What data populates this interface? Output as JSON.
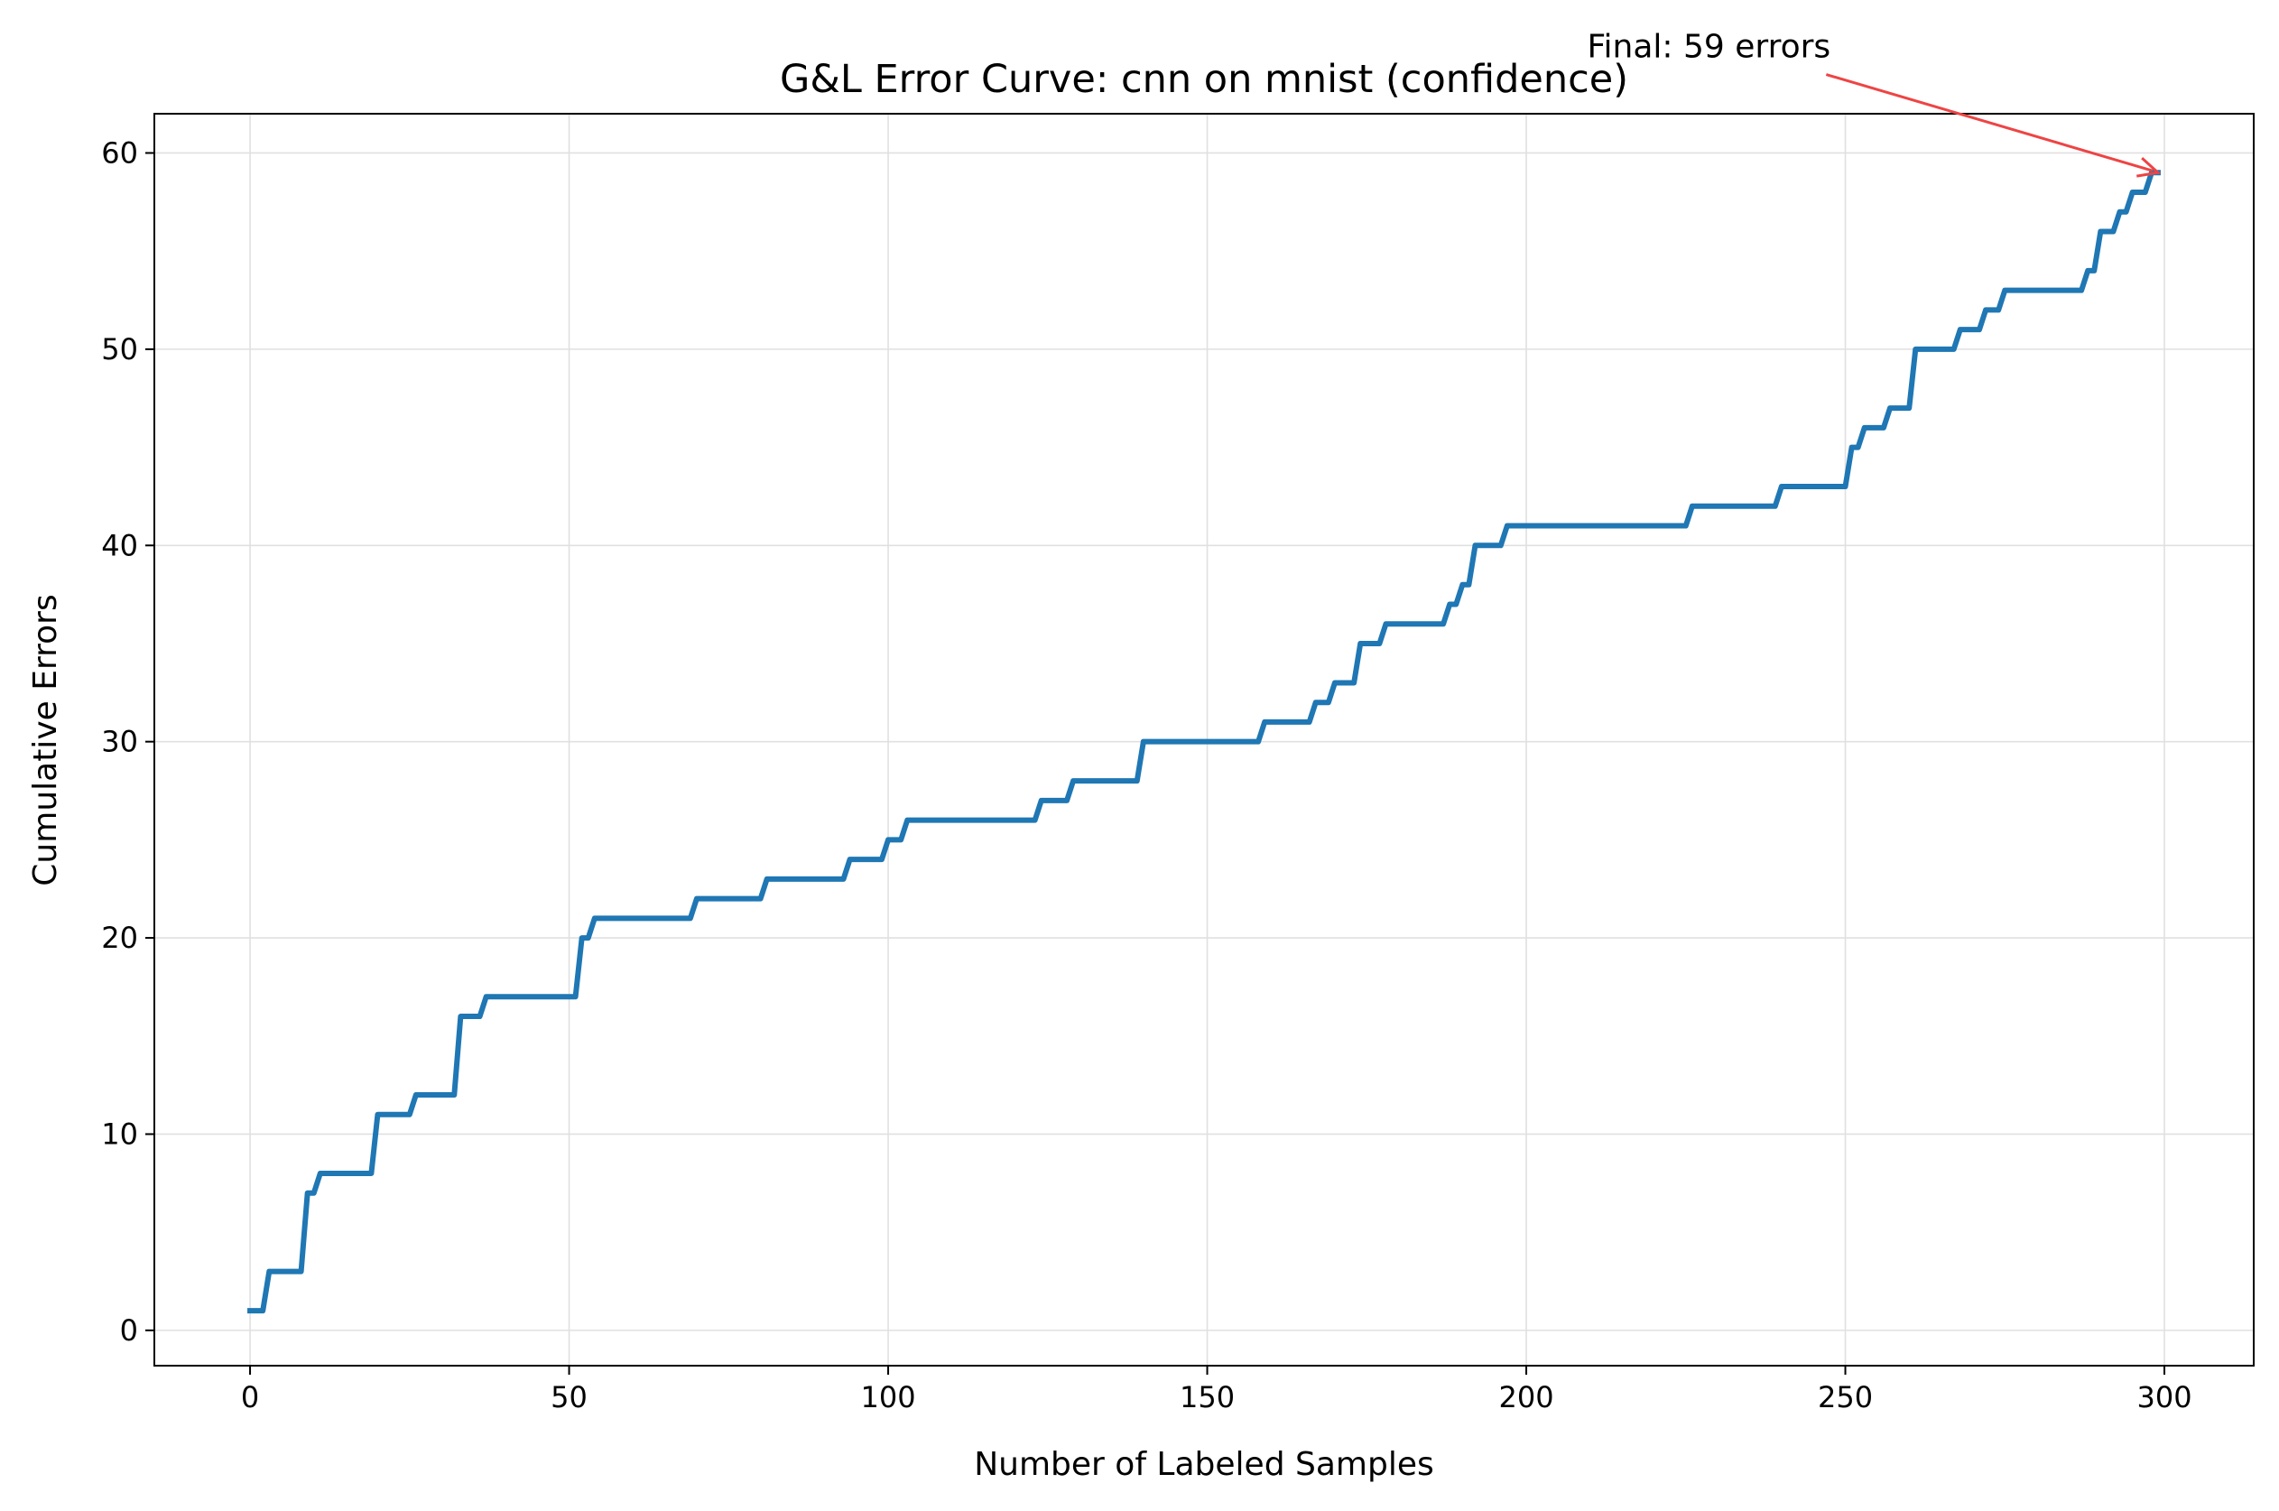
{
  "chart_data": {
    "type": "line",
    "title": "G&L Error Curve: cnn on mnist (confidence)",
    "xlabel": "Number of Labeled Samples",
    "ylabel": "Cumulative Errors",
    "xlim": [
      -15,
      314
    ],
    "ylim": [
      -1.8,
      62
    ],
    "xticks": [
      0,
      50,
      100,
      150,
      200,
      250,
      300
    ],
    "yticks": [
      0,
      10,
      20,
      30,
      40,
      50,
      60
    ],
    "grid": true,
    "legend": "none",
    "colors": {
      "line": "#1f77b4",
      "annotation": "#ee4444",
      "grid": "#e0e0e0",
      "axes": "#000000"
    },
    "annotation": {
      "text": "Final: 59 errors",
      "point": [
        299,
        59
      ],
      "text_anchor_point": [
        247,
        64
      ]
    },
    "series": [
      {
        "steps": [
          [
            0,
            1
          ],
          [
            3,
            3
          ],
          [
            9,
            7
          ],
          [
            11,
            8
          ],
          [
            20,
            11
          ],
          [
            26,
            12
          ],
          [
            33,
            16
          ],
          [
            37,
            17
          ],
          [
            52,
            20
          ],
          [
            54,
            21
          ],
          [
            70,
            22
          ],
          [
            81,
            23
          ],
          [
            94,
            24
          ],
          [
            100,
            25
          ],
          [
            103,
            26
          ],
          [
            124,
            27
          ],
          [
            129,
            28
          ],
          [
            140,
            30
          ],
          [
            159,
            31
          ],
          [
            167,
            32
          ],
          [
            170,
            33
          ],
          [
            174,
            35
          ],
          [
            178,
            36
          ],
          [
            188,
            37
          ],
          [
            190,
            38
          ],
          [
            192,
            40
          ],
          [
            197,
            41
          ],
          [
            226,
            42
          ],
          [
            240,
            43
          ],
          [
            251,
            45
          ],
          [
            253,
            46
          ],
          [
            257,
            47
          ],
          [
            261,
            50
          ],
          [
            268,
            51
          ],
          [
            272,
            52
          ],
          [
            275,
            53
          ],
          [
            288,
            54
          ],
          [
            290,
            56
          ],
          [
            293,
            57
          ],
          [
            295,
            58
          ],
          [
            298,
            59
          ],
          [
            299,
            59
          ]
        ]
      }
    ]
  }
}
